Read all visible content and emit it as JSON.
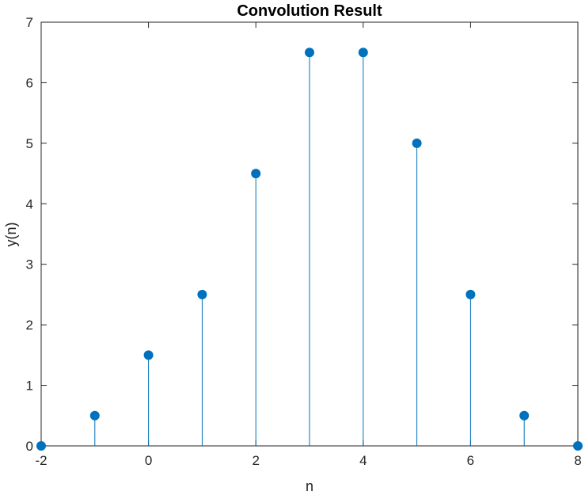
{
  "chart_data": {
    "type": "stem",
    "title": "Convolution Result",
    "xlabel": "n",
    "ylabel": "y(n)",
    "xlim": [
      -2,
      8
    ],
    "ylim": [
      0,
      7
    ],
    "xticks": [
      "-2",
      "0",
      "2",
      "4",
      "6",
      "8"
    ],
    "yticks": [
      "0",
      "1",
      "2",
      "3",
      "4",
      "5",
      "6",
      "7"
    ],
    "x": [
      -2,
      -1,
      0,
      1,
      2,
      3,
      4,
      5,
      6,
      7,
      8
    ],
    "y": [
      0,
      0.5,
      1.5,
      2.5,
      4.5,
      6.5,
      6.5,
      5,
      2.5,
      0.5,
      0
    ],
    "grid": false,
    "box": true,
    "colors": {
      "stem": "#0072BD",
      "marker": "#0072BD",
      "axes": "#262626"
    }
  }
}
